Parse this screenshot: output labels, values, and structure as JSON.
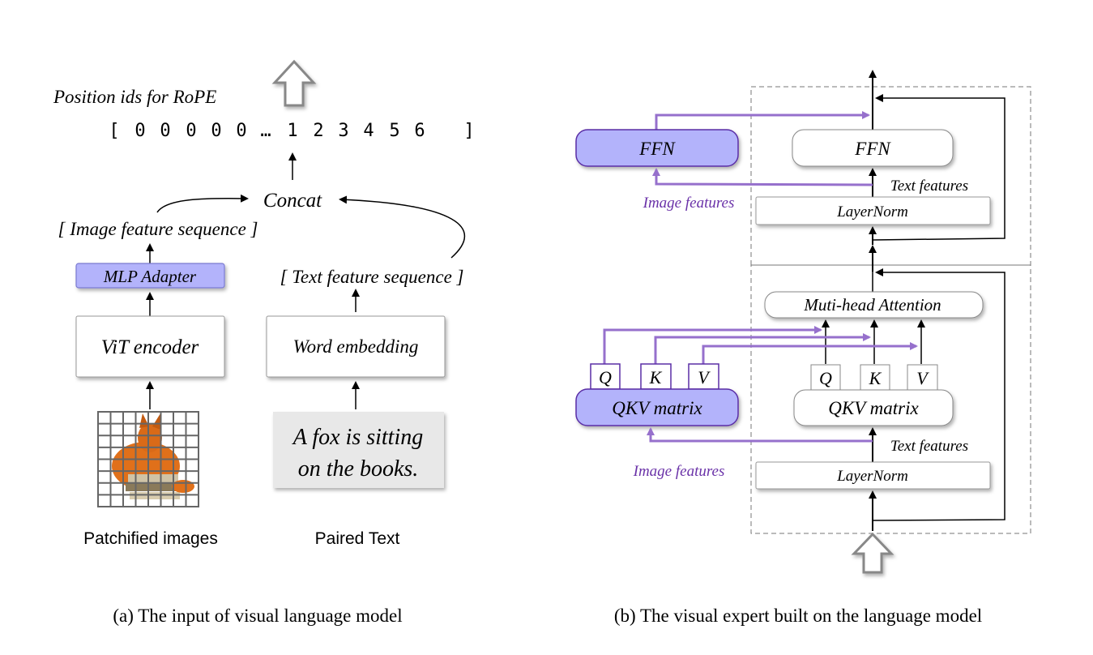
{
  "left": {
    "position_ids_label": "Position ids for RoPE",
    "position_ids": [
      "[",
      "0",
      "0",
      "0",
      "0",
      "0",
      "…",
      "1",
      "2",
      "3",
      "4",
      "5",
      "6",
      "…",
      "]"
    ],
    "concat": "Concat",
    "image_seq": "[ Image feature sequence ]",
    "text_seq": "[ Text  feature sequence ]",
    "mlp_adapter": "MLP Adapter",
    "vit_encoder": "ViT encoder",
    "word_embedding": "Word embedding",
    "paired_text_line1": "A fox is sitting",
    "paired_text_line2": "on the books.",
    "patchified_label": "Patchified images",
    "paired_label": "Paired Text",
    "caption": "(a) The input of visual language model"
  },
  "right": {
    "ffn_image": "FFN",
    "ffn_text": "FFN",
    "text_features_top": "Text features",
    "image_features_top": "Image features",
    "layernorm_top": "LayerNorm",
    "attention": "Muti-head Attention",
    "q": "Q",
    "k": "K",
    "v": "V",
    "qkv_image": "QKV matrix",
    "qkv_text": "QKV matrix",
    "text_features_bottom": "Text features",
    "image_features_bottom": "Image features",
    "layernorm_bottom": "LayerNorm",
    "caption": "(b) The visual expert built on the language model"
  },
  "colors": {
    "expert_fill": "#b3b3fb",
    "expert_border": "#5a2ea6",
    "image_path": "#9670cc",
    "image_label": "#6a32a8"
  }
}
